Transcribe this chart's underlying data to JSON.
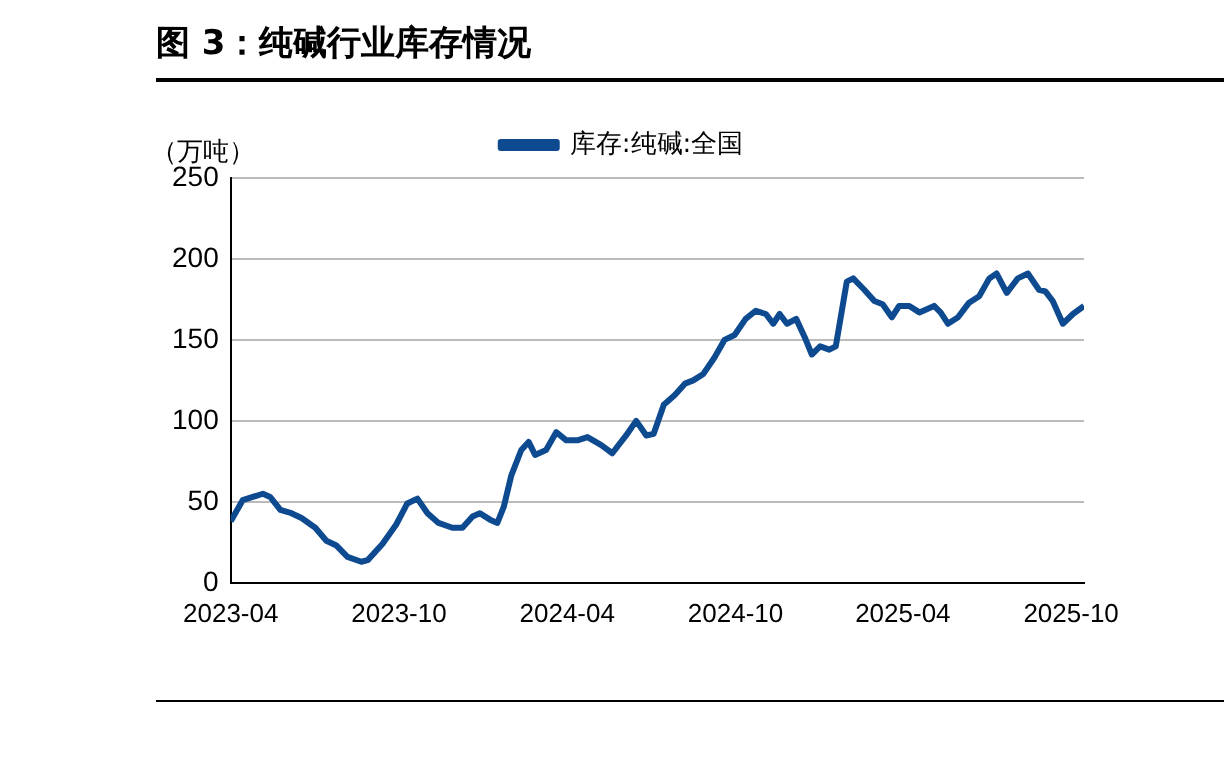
{
  "chart_data": {
    "type": "line",
    "title": "图 3：纯碱行业库存情况",
    "ylabel": "（万吨）",
    "xlim": [
      "2023-04-01",
      "2025-10-15"
    ],
    "xticks": [
      "2023-04",
      "2023-10",
      "2024-04",
      "2024-10",
      "2025-04",
      "2025-10"
    ],
    "ylim": [
      0,
      250
    ],
    "yticks": [
      0,
      50,
      100,
      150,
      200,
      250
    ],
    "grid": "y",
    "legend": "top",
    "marker": "none",
    "line_style": "solid",
    "series": [
      {
        "name": "库存:纯碱:全国",
        "color": "#0e4a8f",
        "x": [
          "2023-04-01",
          "2023-04-14",
          "2023-04-25",
          "2023-05-06",
          "2023-05-14",
          "2023-05-25",
          "2023-06-06",
          "2023-06-17",
          "2023-07-02",
          "2023-07-14",
          "2023-07-25",
          "2023-08-06",
          "2023-08-21",
          "2023-08-28",
          "2023-09-13",
          "2023-09-28",
          "2023-10-10",
          "2023-10-21",
          "2023-11-01",
          "2023-11-13",
          "2023-11-28",
          "2023-12-09",
          "2023-12-20",
          "2023-12-28",
          "2024-01-08",
          "2024-01-16",
          "2024-01-23",
          "2024-01-31",
          "2024-02-11",
          "2024-02-19",
          "2024-02-26",
          "2024-03-09",
          "2024-03-20",
          "2024-03-31",
          "2024-04-12",
          "2024-04-23",
          "2024-05-08",
          "2024-05-20",
          "2024-06-04",
          "2024-06-15",
          "2024-06-26",
          "2024-07-04",
          "2024-07-15",
          "2024-07-27",
          "2024-08-07",
          "2024-08-16",
          "2024-08-27",
          "2024-09-08",
          "2024-09-19",
          "2024-09-30",
          "2024-10-12",
          "2024-10-23",
          "2024-11-03",
          "2024-11-11",
          "2024-11-18",
          "2024-11-26",
          "2024-12-06",
          "2024-12-15",
          "2024-12-23",
          "2025-01-01",
          "2025-01-11",
          "2025-01-18",
          "2025-01-30",
          "2025-02-06",
          "2025-02-18",
          "2025-03-01",
          "2025-03-10",
          "2025-03-20",
          "2025-03-28",
          "2025-04-08",
          "2025-04-19",
          "2025-05-05",
          "2025-05-12",
          "2025-05-20",
          "2025-05-31",
          "2025-06-12",
          "2025-06-23",
          "2025-07-04",
          "2025-07-12",
          "2025-07-23",
          "2025-08-04",
          "2025-08-15",
          "2025-08-27",
          "2025-09-03",
          "2025-09-11",
          "2025-09-22",
          "2025-10-03",
          "2025-10-15"
        ],
        "values": [
          38,
          51,
          53,
          55,
          53,
          45,
          43,
          40,
          34,
          26,
          23,
          16,
          13,
          14,
          24,
          36,
          49,
          52,
          43,
          37,
          34,
          34,
          41,
          43,
          39,
          37,
          47,
          66,
          82,
          87,
          79,
          82,
          93,
          88,
          88,
          90,
          85,
          80,
          91,
          100,
          91,
          92,
          110,
          116,
          123,
          125,
          129,
          139,
          150,
          153,
          163,
          168,
          166,
          160,
          166,
          160,
          163,
          152,
          141,
          146,
          144,
          146,
          186,
          188,
          181,
          174,
          172,
          164,
          171,
          171,
          167,
          171,
          167,
          160,
          164,
          173,
          177,
          188,
          191,
          179,
          188,
          191,
          181,
          180,
          174,
          160,
          166,
          171
        ]
      }
    ]
  }
}
